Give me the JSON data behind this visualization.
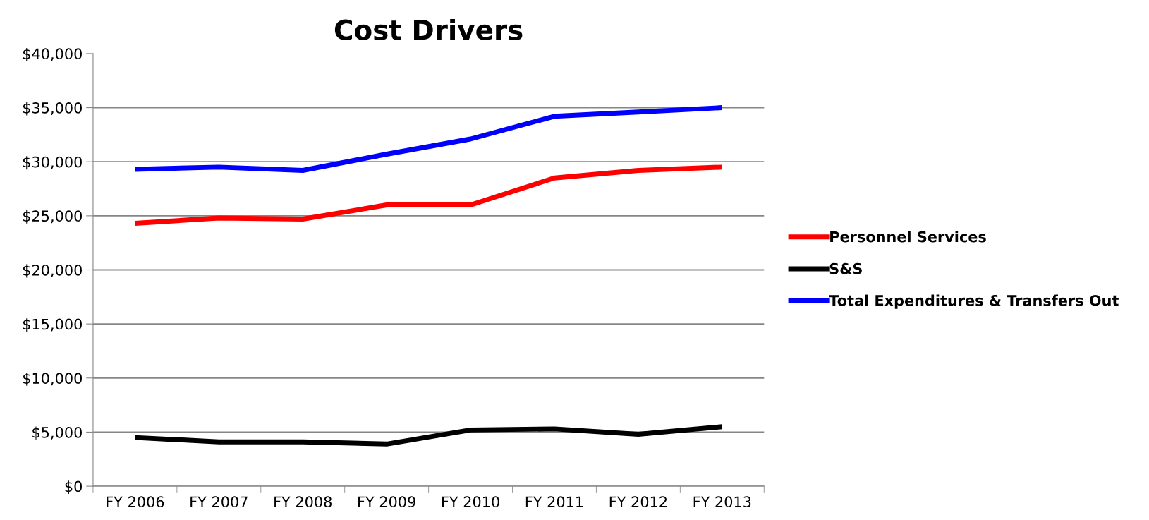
{
  "chart_data": {
    "type": "line",
    "title": "Cost Drivers",
    "categories": [
      "FY 2006",
      "FY 2007",
      "FY 2008",
      "FY 2009",
      "FY 2010",
      "FY 2011",
      "FY 2012",
      "FY 2013"
    ],
    "series": [
      {
        "name": "Personnel Services",
        "color": "#ff0000",
        "values": [
          24300,
          24800,
          24700,
          26000,
          26000,
          28500,
          29200,
          29500
        ]
      },
      {
        "name": "S&S",
        "color": "#000000",
        "values": [
          4500,
          4100,
          4100,
          3900,
          5200,
          5300,
          4800,
          5500
        ]
      },
      {
        "name": "Total Expenditures & Transfers Out",
        "color": "#0000ff",
        "values": [
          29300,
          29500,
          29200,
          30700,
          32100,
          34200,
          34600,
          35000
        ]
      }
    ],
    "ylim": [
      0,
      40000
    ],
    "yticks": [
      {
        "value": 0,
        "label": "$0"
      },
      {
        "value": 5000,
        "label": "$5,000"
      },
      {
        "value": 10000,
        "label": "$10,000"
      },
      {
        "value": 15000,
        "label": "$15,000"
      },
      {
        "value": 20000,
        "label": "$20,000"
      },
      {
        "value": 25000,
        "label": "$25,000"
      },
      {
        "value": 30000,
        "label": "$30,000"
      },
      {
        "value": 35000,
        "label": "$35,000"
      },
      {
        "value": 40000,
        "label": "$40,000"
      }
    ],
    "grid": "y",
    "legend": "right",
    "marker": "none",
    "line_style": "solid"
  }
}
